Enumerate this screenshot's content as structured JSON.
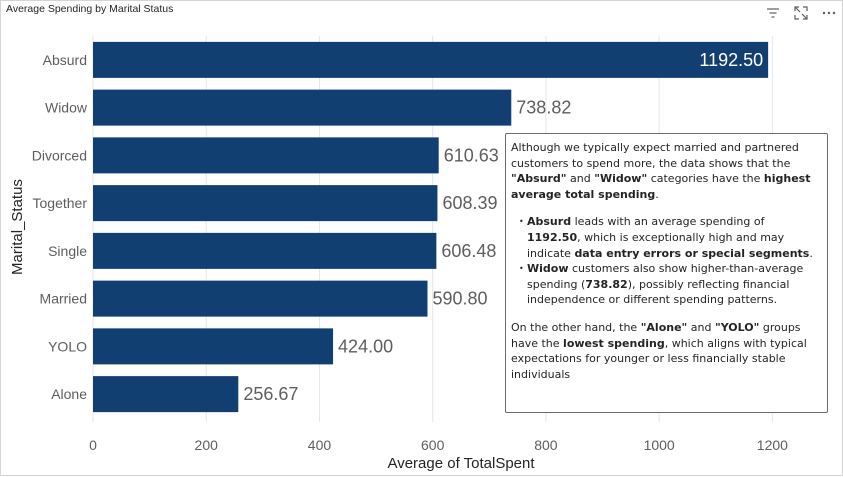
{
  "visual": {
    "title": "Average Spending by Marital Status"
  },
  "header_icons": [
    "filter-icon",
    "focus-mode-icon",
    "more-options-icon"
  ],
  "colors": {
    "bar": "#123f72",
    "grid": "#e6e6e6"
  },
  "chart_data": {
    "type": "bar",
    "orientation": "horizontal",
    "title": "Average Spending by Marital Status",
    "xlabel": "Average of TotalSpent",
    "ylabel": "Marital_Status",
    "categories": [
      "Absurd",
      "Widow",
      "Divorced",
      "Together",
      "Single",
      "Married",
      "YOLO",
      "Alone"
    ],
    "values": [
      1192.5,
      738.82,
      610.63,
      608.39,
      606.48,
      590.8,
      424.0,
      256.67
    ],
    "value_labels": [
      "1192.50",
      "738.82",
      "610.63",
      "608.39",
      "606.48",
      "590.80",
      "424.00",
      "256.67"
    ],
    "xlim": [
      0,
      1300
    ],
    "xticks": [
      0,
      200,
      400,
      600,
      800,
      1000,
      1200
    ],
    "grid": true
  },
  "textbox": {
    "intro_pre": "Although we typically expect married and partnered customers to spend more, the data shows that the ",
    "intro_absurd": "\"Absurd\"",
    "intro_and": " and ",
    "intro_widow": "\"Widow\"",
    "intro_mid": " categories have the ",
    "intro_bold": "highest average total spending",
    "intro_end": ".",
    "b1_name": "Absurd",
    "b1_pre": " leads with an average spending of ",
    "b1_value": "1192.50",
    "b1_mid": ", which is exceptionally high and may indicate ",
    "b1_bold": "data entry errors or special segments",
    "b1_end": ".",
    "b2_name": "Widow",
    "b2_pre": " customers also show higher-than-average spending (",
    "b2_value": "738.82",
    "b2_end": "), possibly reflecting financial independence or different spending patterns.",
    "outro_pre": "On the other hand, the ",
    "outro_alone": "\"Alone\"",
    "outro_and": " and ",
    "outro_yolo": "\"YOLO\"",
    "outro_mid": " groups have the ",
    "outro_bold": "lowest spending",
    "outro_end": ", which aligns with typical expectations for younger or less financially stable individuals"
  }
}
